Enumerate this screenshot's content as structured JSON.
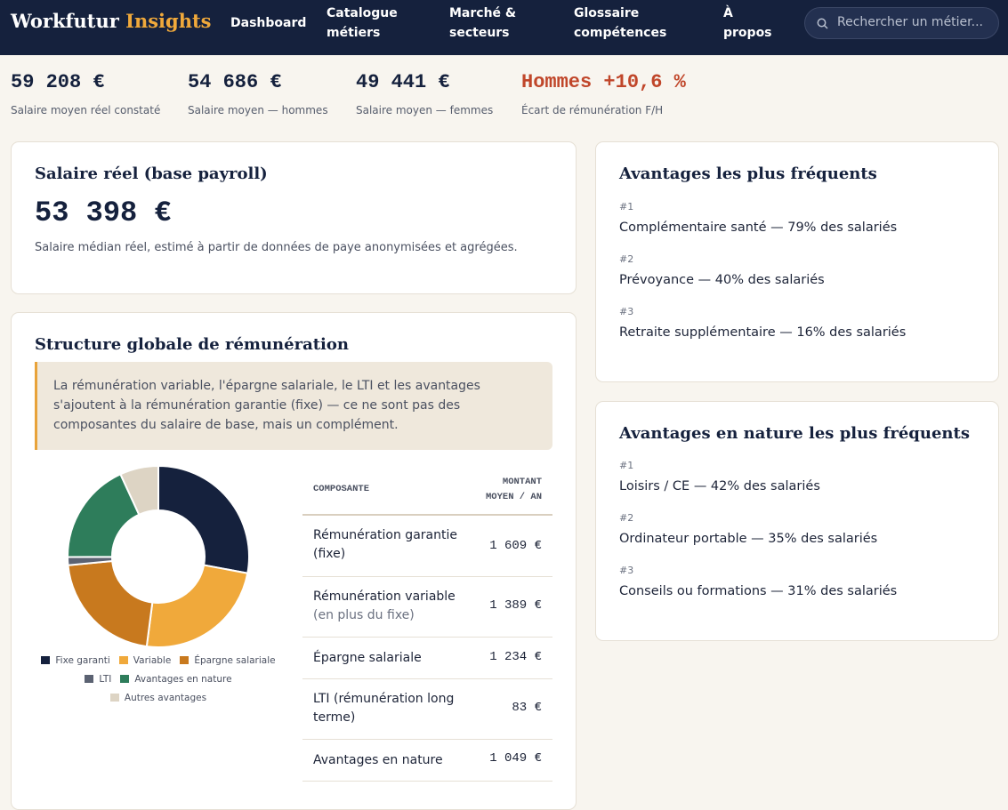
{
  "header": {
    "brand": "Workfutur",
    "brand_accent": "Insights",
    "nav": [
      "Dashboard",
      "Catalogue métiers",
      "Marché & secteurs",
      "Glossaire compétences",
      "À propos"
    ],
    "search_placeholder": "Rechercher un métier..."
  },
  "kpis": [
    {
      "value": "59 208 €",
      "label": "Salaire moyen réel constaté"
    },
    {
      "value": "54 686 €",
      "label": "Salaire moyen — hommes"
    },
    {
      "value": "49 441 €",
      "label": "Salaire moyen — femmes"
    },
    {
      "value": "Hommes +10,6 %",
      "label": "Écart de rémunération F/H"
    }
  ],
  "salary_card": {
    "title": "Salaire réel (base payroll)",
    "value": "53 398 €",
    "note": "Salaire médian réel, estimé à partir de données de paye anonymisées et agrégées."
  },
  "structure": {
    "title": "Structure globale de rémunération",
    "callout": "La rémunération variable, l'épargne salariale, le LTI et les avantages s'ajoutent à la rémunération garantie (fixe) — ce ne sont pas des composantes du salaire de base, mais un complément.",
    "table": {
      "headers": [
        "COMPOSANTE",
        "MONTANT MOYEN / AN"
      ],
      "rows": [
        {
          "label": "Rémunération garantie (fixe)",
          "amount": "1 609 €"
        },
        {
          "label": "Rémunération variable",
          "sublabel": "(en plus du fixe)",
          "amount": "1 389 €"
        },
        {
          "label": "Épargne salariale",
          "amount": "1 234 €"
        },
        {
          "label": "LTI (rémunération long terme)",
          "amount": "83 €"
        },
        {
          "label": "Avantages en nature",
          "amount": "1 049 €"
        }
      ]
    }
  },
  "chart_data": {
    "type": "pie",
    "donut": true,
    "categories": [
      "Fixe garanti",
      "Variable",
      "Épargne salariale",
      "LTI",
      "Avantages en nature",
      "Autres avantages"
    ],
    "values": [
      1609,
      1389,
      1234,
      83,
      1049,
      395
    ],
    "colors": [
      "#15213d",
      "#f0a93b",
      "#c8791e",
      "#5b6272",
      "#2e7d5b",
      "#ddd4c4"
    ]
  },
  "benefits": {
    "title": "Avantages les plus fréquents",
    "items": [
      {
        "rank": "#1",
        "text": "Complémentaire santé — 79% des salariés"
      },
      {
        "rank": "#2",
        "text": "Prévoyance — 40% des salariés"
      },
      {
        "rank": "#3",
        "text": "Retraite supplémentaire — 16% des salariés"
      }
    ]
  },
  "in_kind": {
    "title": "Avantages en nature les plus fréquents",
    "items": [
      {
        "rank": "#1",
        "text": "Loisirs / CE — 42% des salariés"
      },
      {
        "rank": "#2",
        "text": "Ordinateur portable — 35% des salariés"
      },
      {
        "rank": "#3",
        "text": "Conseils ou formations — 31% des salariés"
      }
    ]
  }
}
